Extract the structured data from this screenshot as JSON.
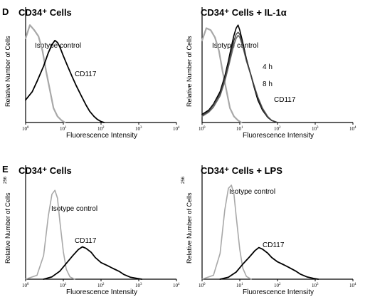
{
  "figure": {
    "row_labels": [
      "D",
      "E"
    ],
    "y_axis_label": "Relative Number of Cells",
    "x_axis_label": "Fluorescence Intensity",
    "x_ticks": [
      {
        "base": "10",
        "exp": "0"
      },
      {
        "base": "10",
        "exp": "1"
      },
      {
        "base": "10",
        "exp": "2"
      },
      {
        "base": "10",
        "exp": "3"
      },
      {
        "base": "10",
        "exp": "4"
      }
    ],
    "y_top_tick_row_E": "256"
  },
  "colors": {
    "isotype": "#a8a8a8",
    "cd117": "#000000"
  },
  "chart_data": [
    {
      "type": "line",
      "panel": "D-left",
      "title": "CD34⁺ Cells",
      "xlabel": "Fluorescence Intensity",
      "ylabel": "Relative Number of Cells",
      "x_scale": "log",
      "xlim": [
        1,
        10000
      ],
      "series": [
        {
          "name": "Isotype control",
          "x": [
            1,
            1.3,
            1.7,
            2.2,
            2.8,
            3.5,
            4.5,
            5.5,
            7,
            9,
            11
          ],
          "values": [
            0.82,
            0.95,
            0.9,
            0.84,
            0.7,
            0.5,
            0.3,
            0.14,
            0.06,
            0.02,
            0
          ]
        },
        {
          "name": "CD117",
          "x": [
            1,
            1.5,
            2,
            3,
            4,
            5,
            6,
            7,
            8,
            10,
            13,
            17,
            22,
            30,
            40,
            50,
            65,
            80,
            100,
            120
          ],
          "values": [
            0.22,
            0.3,
            0.4,
            0.55,
            0.68,
            0.76,
            0.8,
            0.78,
            0.74,
            0.65,
            0.55,
            0.45,
            0.36,
            0.26,
            0.17,
            0.11,
            0.06,
            0.03,
            0.01,
            0
          ]
        }
      ]
    },
    {
      "type": "line",
      "panel": "D-right",
      "title": "CD34⁺ Cells + IL-1α",
      "xlabel": "Fluorescence Intensity",
      "ylabel": "Relative Number of Cells",
      "x_scale": "log",
      "xlim": [
        1,
        10000
      ],
      "annotations": [
        "4 h",
        "8 h",
        "CD117"
      ],
      "series": [
        {
          "name": "Isotype control",
          "x": [
            1,
            1.3,
            1.7,
            2.2,
            2.8,
            3.5,
            4.5,
            5.5,
            7,
            9,
            11
          ],
          "values": [
            0.8,
            0.92,
            0.9,
            0.83,
            0.7,
            0.5,
            0.3,
            0.14,
            0.06,
            0.02,
            0
          ]
        },
        {
          "name": "4 h",
          "x": [
            1,
            1.5,
            2,
            3,
            4,
            5,
            6,
            7,
            8,
            9,
            10,
            12,
            15,
            20,
            25,
            30,
            40,
            55,
            70,
            100
          ],
          "values": [
            0.08,
            0.12,
            0.18,
            0.3,
            0.45,
            0.6,
            0.74,
            0.85,
            0.92,
            0.95,
            0.9,
            0.78,
            0.62,
            0.45,
            0.32,
            0.22,
            0.12,
            0.05,
            0.02,
            0
          ]
        },
        {
          "name": "8 h",
          "x": [
            1,
            1.5,
            2,
            3,
            4,
            5,
            6,
            7,
            8,
            9,
            10,
            12,
            15,
            20,
            25,
            30,
            40,
            55,
            70,
            100
          ],
          "values": [
            0.06,
            0.1,
            0.15,
            0.26,
            0.4,
            0.54,
            0.66,
            0.76,
            0.82,
            0.85,
            0.83,
            0.74,
            0.6,
            0.45,
            0.34,
            0.25,
            0.14,
            0.06,
            0.02,
            0
          ]
        },
        {
          "name": "CD117",
          "x": [
            1,
            1.5,
            2,
            3,
            4,
            5,
            6,
            7,
            8,
            9,
            10,
            12,
            15,
            20,
            25,
            30,
            40,
            55,
            70,
            100
          ],
          "values": [
            0.07,
            0.11,
            0.17,
            0.28,
            0.43,
            0.57,
            0.7,
            0.8,
            0.86,
            0.88,
            0.86,
            0.76,
            0.61,
            0.46,
            0.33,
            0.24,
            0.13,
            0.05,
            0.02,
            0
          ]
        }
      ]
    },
    {
      "type": "line",
      "panel": "E-left",
      "title": "CD34⁺ Cells",
      "xlabel": "Fluorescence Intensity",
      "ylabel": "Relative Number of Cells",
      "x_scale": "log",
      "xlim": [
        1,
        10000
      ],
      "ylim": [
        0,
        256
      ],
      "series": [
        {
          "name": "Isotype control",
          "x": [
            1,
            2,
            3,
            4,
            5,
            6,
            7,
            8,
            10,
            12,
            15,
            20
          ],
          "values": [
            0,
            10,
            60,
            160,
            215,
            225,
            205,
            150,
            70,
            25,
            6,
            0
          ]
        },
        {
          "name": "CD117",
          "x": [
            3,
            5,
            8,
            12,
            18,
            25,
            32,
            40,
            55,
            70,
            100,
            150,
            200,
            300,
            400,
            600,
            900,
            1200
          ],
          "values": [
            0,
            6,
            20,
            40,
            60,
            75,
            82,
            78,
            68,
            55,
            42,
            34,
            28,
            20,
            12,
            5,
            2,
            0
          ]
        }
      ]
    },
    {
      "type": "line",
      "panel": "E-right",
      "title": "CD34⁺ Cells + LPS",
      "xlabel": "Fluorescence Intensity",
      "ylabel": "Relative Number of Cells",
      "x_scale": "log",
      "xlim": [
        1,
        10000
      ],
      "ylim": [
        0,
        256
      ],
      "series": [
        {
          "name": "Isotype control",
          "x": [
            1,
            2,
            3,
            4,
            5,
            6,
            7,
            8,
            10,
            12,
            15,
            20
          ],
          "values": [
            0,
            10,
            65,
            175,
            230,
            238,
            215,
            160,
            75,
            28,
            7,
            0
          ]
        },
        {
          "name": "CD117",
          "x": [
            3,
            5,
            8,
            12,
            18,
            25,
            32,
            40,
            55,
            70,
            100,
            150,
            200,
            300,
            400,
            600,
            900,
            1200
          ],
          "values": [
            0,
            5,
            18,
            38,
            56,
            72,
            80,
            76,
            66,
            55,
            44,
            36,
            30,
            21,
            13,
            6,
            2,
            0
          ]
        }
      ]
    }
  ]
}
